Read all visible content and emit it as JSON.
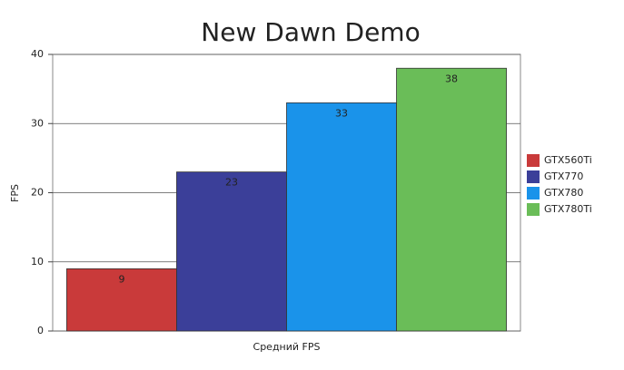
{
  "chart_data": {
    "type": "bar",
    "title": "New Dawn Demo",
    "y_label": "FPS",
    "categories": [
      "Средний FPS"
    ],
    "series": [
      {
        "name": "GTX560Ti",
        "color": "#c93a3a",
        "values": [
          9
        ]
      },
      {
        "name": "GTX770",
        "color": "#3b3f99",
        "values": [
          23
        ]
      },
      {
        "name": "GTX780",
        "color": "#1a93ea",
        "values": [
          33
        ]
      },
      {
        "name": "GTX780Ti",
        "color": "#6abd58",
        "values": [
          38
        ]
      }
    ],
    "ylim": [
      0,
      40
    ],
    "yticks": [
      0,
      10,
      20,
      30,
      40
    ],
    "grid": true,
    "legend": "right"
  }
}
